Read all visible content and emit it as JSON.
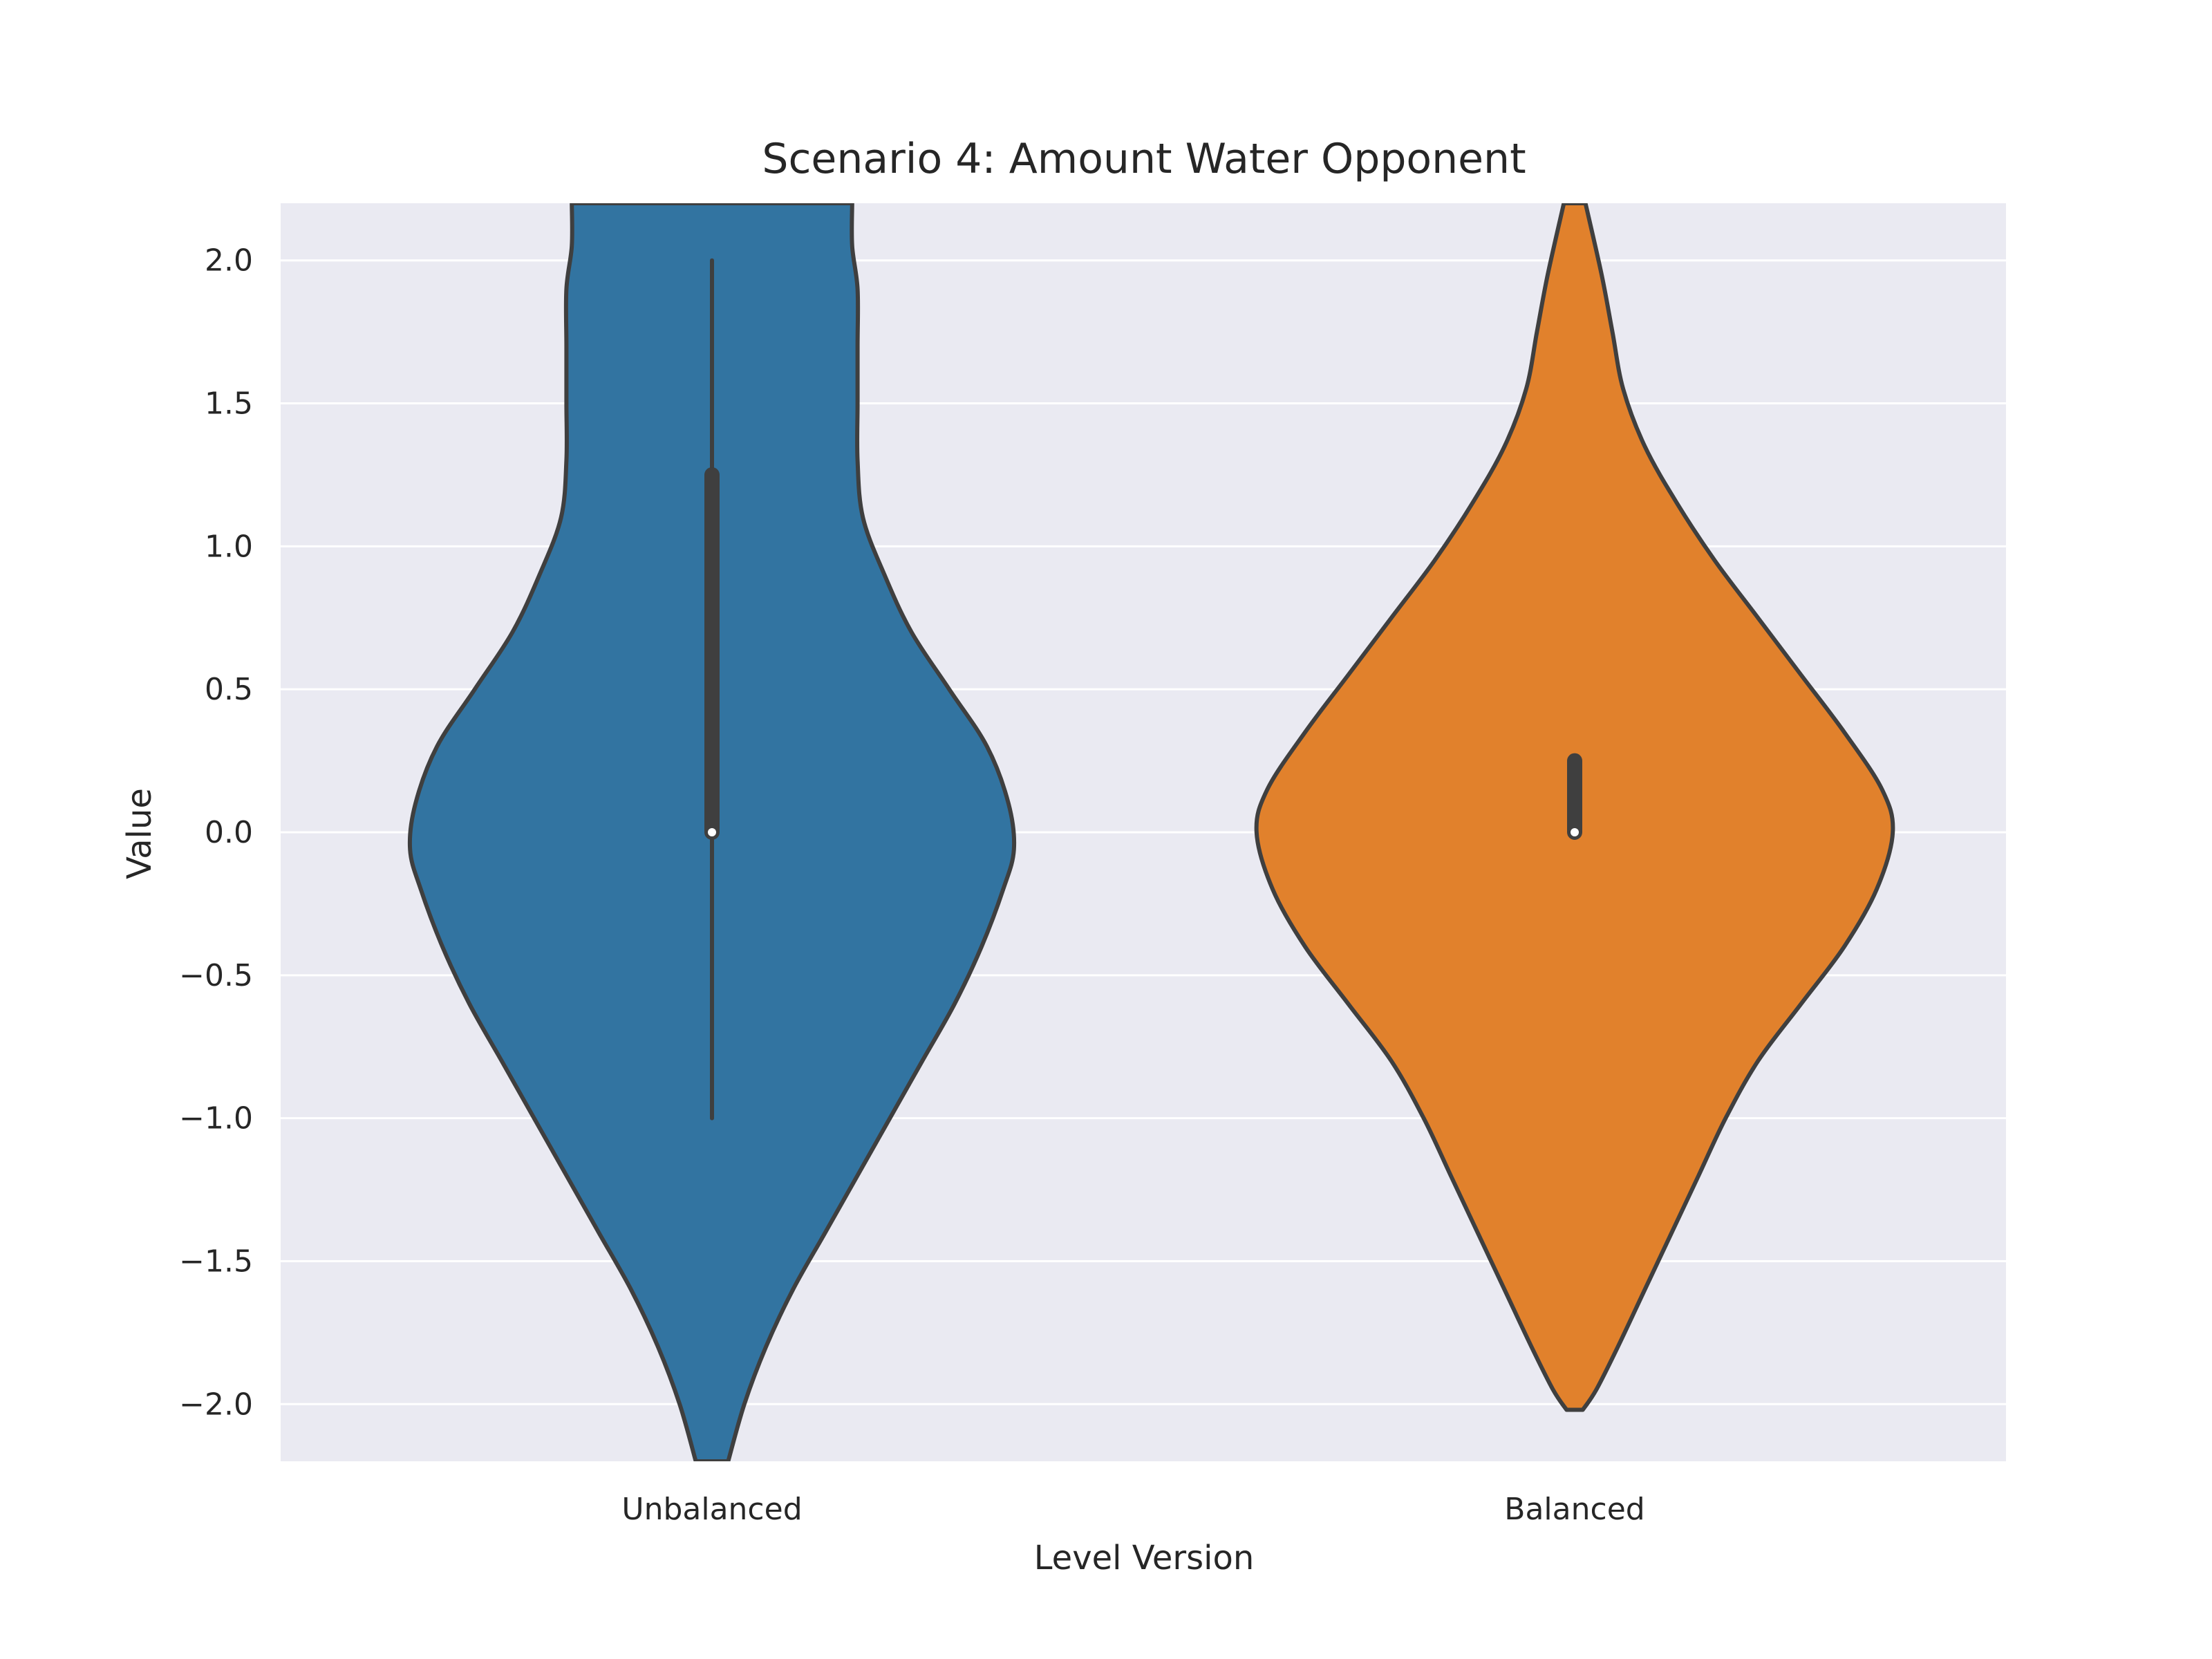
{
  "chart_data": {
    "type": "violin",
    "title": "Scenario 4: Amount Water Opponent",
    "xlabel": "Level Version",
    "ylabel": "Value",
    "categories": [
      "Unbalanced",
      "Balanced"
    ],
    "ylim": [
      -2.2,
      2.2
    ],
    "yticks": [
      2.0,
      1.5,
      1.0,
      0.5,
      0.0,
      -0.5,
      -1.0,
      -1.5,
      -2.0
    ],
    "ytick_labels": [
      "2.0",
      "1.5",
      "1.0",
      "0.5",
      "0.0",
      "−0.5",
      "−1.0",
      "−1.5",
      "−2.0"
    ],
    "grid": true,
    "background": "#eaeaf2",
    "violins": [
      {
        "category": "Unbalanced",
        "color": "#3274a1",
        "median": 0.0,
        "q1": 0.0,
        "q3": 1.25,
        "whisker_low": -1.0,
        "whisker_high": 2.0,
        "density_profile": [
          [
            -2.2,
            0.03
          ],
          [
            -2.0,
            0.06
          ],
          [
            -1.8,
            0.1
          ],
          [
            -1.6,
            0.15
          ],
          [
            -1.4,
            0.21
          ],
          [
            -1.2,
            0.27
          ],
          [
            -1.0,
            0.33
          ],
          [
            -0.8,
            0.39
          ],
          [
            -0.6,
            0.45
          ],
          [
            -0.4,
            0.5
          ],
          [
            -0.2,
            0.54
          ],
          [
            -0.06,
            0.56
          ],
          [
            0.1,
            0.55
          ],
          [
            0.3,
            0.51
          ],
          [
            0.5,
            0.44
          ],
          [
            0.7,
            0.37
          ],
          [
            0.9,
            0.32
          ],
          [
            1.1,
            0.28
          ],
          [
            1.3,
            0.27
          ],
          [
            1.5,
            0.27
          ],
          [
            1.7,
            0.27
          ],
          [
            1.9,
            0.27
          ],
          [
            2.05,
            0.26
          ],
          [
            2.2,
            0.26
          ]
        ]
      },
      {
        "category": "Balanced",
        "color": "#e1812c",
        "median": 0.0,
        "q1": 0.0,
        "q3": 0.25,
        "whisker_low": 0.0,
        "whisker_high": 0.25,
        "density_profile": [
          [
            -2.02,
            0.015
          ],
          [
            -1.95,
            0.04
          ],
          [
            -1.8,
            0.08
          ],
          [
            -1.6,
            0.13
          ],
          [
            -1.4,
            0.18
          ],
          [
            -1.2,
            0.23
          ],
          [
            -1.0,
            0.28
          ],
          [
            -0.8,
            0.34
          ],
          [
            -0.6,
            0.42
          ],
          [
            -0.4,
            0.5
          ],
          [
            -0.2,
            0.56
          ],
          [
            0.0,
            0.59
          ],
          [
            0.15,
            0.57
          ],
          [
            0.35,
            0.5
          ],
          [
            0.55,
            0.42
          ],
          [
            0.75,
            0.34
          ],
          [
            0.95,
            0.26
          ],
          [
            1.15,
            0.19
          ],
          [
            1.35,
            0.13
          ],
          [
            1.55,
            0.09
          ],
          [
            1.75,
            0.07
          ],
          [
            1.95,
            0.05
          ],
          [
            2.2,
            0.02
          ]
        ]
      }
    ]
  }
}
